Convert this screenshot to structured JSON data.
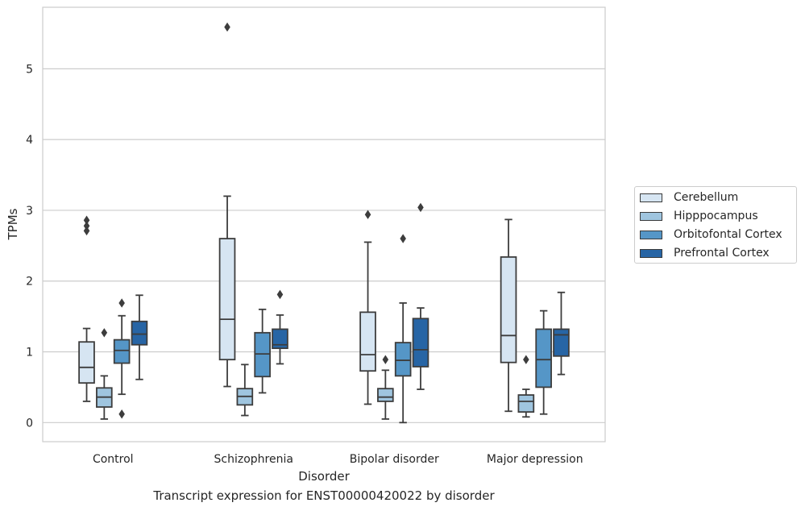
{
  "caption": "Transcript expression for ENST00000420022 by disorder",
  "chart_data": {
    "type": "boxplot",
    "xlabel": "Disorder",
    "ylabel": "TPMs",
    "ylim": [
      -0.27,
      5.87
    ],
    "yticks": [
      0,
      1,
      2,
      3,
      4,
      5
    ],
    "grid": true,
    "legend_position": "right",
    "categories": [
      "Control",
      "Schizophrenia",
      "Bipolar disorder",
      "Major depression"
    ],
    "series": [
      {
        "name": "Cerebellum",
        "color": "#d6e5f2",
        "boxes": [
          {
            "whislo": 0.3,
            "q1": 0.56,
            "med": 0.78,
            "q3": 1.14,
            "whishi": 1.33,
            "fliers": [
              2.71,
              2.78,
              2.86
            ]
          },
          {
            "whislo": 0.51,
            "q1": 0.89,
            "med": 1.46,
            "q3": 2.6,
            "whishi": 3.2,
            "fliers": [
              5.59
            ]
          },
          {
            "whislo": 0.26,
            "q1": 0.73,
            "med": 0.96,
            "q3": 1.56,
            "whishi": 2.55,
            "fliers": [
              2.94
            ]
          },
          {
            "whislo": 0.16,
            "q1": 0.85,
            "med": 1.23,
            "q3": 2.34,
            "whishi": 2.87,
            "fliers": []
          }
        ]
      },
      {
        "name": "Hipppocampus",
        "color": "#9fc5df",
        "boxes": [
          {
            "whislo": 0.05,
            "q1": 0.22,
            "med": 0.36,
            "q3": 0.49,
            "whishi": 0.66,
            "fliers": [
              1.27
            ]
          },
          {
            "whislo": 0.1,
            "q1": 0.25,
            "med": 0.37,
            "q3": 0.48,
            "whishi": 0.82,
            "fliers": []
          },
          {
            "whislo": 0.05,
            "q1": 0.3,
            "med": 0.36,
            "q3": 0.48,
            "whishi": 0.74,
            "fliers": [
              0.89
            ]
          },
          {
            "whislo": 0.08,
            "q1": 0.15,
            "med": 0.3,
            "q3": 0.39,
            "whishi": 0.47,
            "fliers": [
              0.89
            ]
          }
        ]
      },
      {
        "name": "Orbitofontal Cortex",
        "color": "#5596c7",
        "boxes": [
          {
            "whislo": 0.4,
            "q1": 0.84,
            "med": 1.02,
            "q3": 1.17,
            "whishi": 1.51,
            "fliers": [
              1.69,
              0.12
            ]
          },
          {
            "whislo": 0.42,
            "q1": 0.65,
            "med": 0.97,
            "q3": 1.27,
            "whishi": 1.6,
            "fliers": []
          },
          {
            "whislo": 0.0,
            "q1": 0.66,
            "med": 0.88,
            "q3": 1.13,
            "whishi": 1.69,
            "fliers": [
              2.6
            ]
          },
          {
            "whislo": 0.12,
            "q1": 0.5,
            "med": 0.89,
            "q3": 1.32,
            "whishi": 1.58,
            "fliers": []
          }
        ]
      },
      {
        "name": "Prefrontal Cortex",
        "color": "#2765a5",
        "boxes": [
          {
            "whislo": 0.61,
            "q1": 1.1,
            "med": 1.25,
            "q3": 1.43,
            "whishi": 1.8,
            "fliers": []
          },
          {
            "whislo": 0.83,
            "q1": 1.05,
            "med": 1.1,
            "q3": 1.32,
            "whishi": 1.52,
            "fliers": [
              1.81
            ]
          },
          {
            "whislo": 0.47,
            "q1": 0.79,
            "med": 1.03,
            "q3": 1.47,
            "whishi": 1.62,
            "fliers": [
              3.04
            ]
          },
          {
            "whislo": 0.68,
            "q1": 0.94,
            "med": 1.24,
            "q3": 1.32,
            "whishi": 1.84,
            "fliers": []
          }
        ]
      }
    ]
  }
}
